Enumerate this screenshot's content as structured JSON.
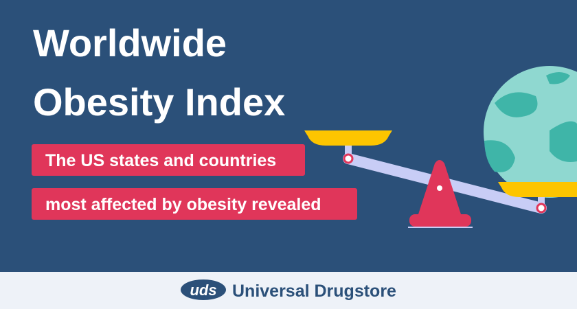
{
  "header": {
    "title_lines": [
      "Worldwide",
      "Obesity Index"
    ],
    "subtitle_lines": [
      "The US states and countries",
      "most affected by obesity revealed"
    ]
  },
  "footer": {
    "logo_mark": "uds",
    "brand": "Universal Drugstore"
  }
}
